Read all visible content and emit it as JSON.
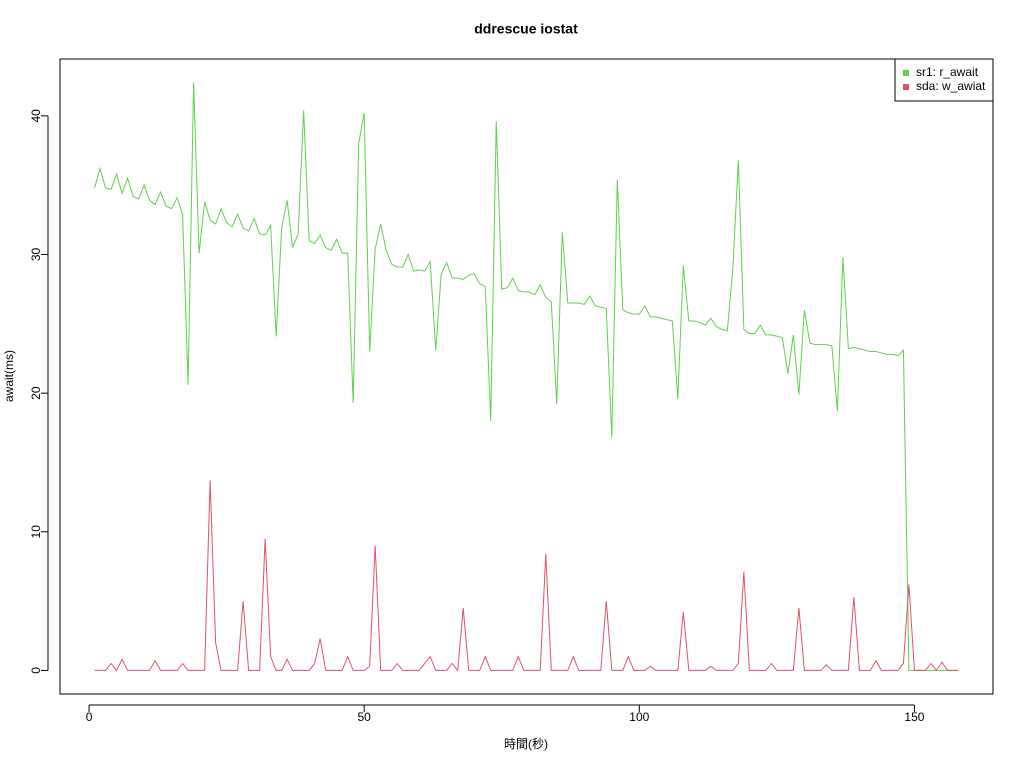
{
  "chart_data": {
    "type": "line",
    "title": "ddrescue iostat",
    "x_label": "時間(秒)",
    "y_label": "await(ms)",
    "x": [
      1,
      2,
      3,
      4,
      5,
      6,
      7,
      8,
      9,
      10,
      11,
      12,
      13,
      14,
      15,
      16,
      17,
      18,
      19,
      20,
      21,
      22,
      23,
      24,
      25,
      26,
      27,
      28,
      29,
      30,
      31,
      32,
      33,
      34,
      35,
      36,
      37,
      38,
      39,
      40,
      41,
      42,
      43,
      44,
      45,
      46,
      47,
      48,
      49,
      50,
      51,
      52,
      53,
      54,
      55,
      56,
      57,
      58,
      59,
      60,
      61,
      62,
      63,
      64,
      65,
      66,
      67,
      68,
      69,
      70,
      71,
      72,
      73,
      74,
      75,
      76,
      77,
      78,
      79,
      80,
      81,
      82,
      83,
      84,
      85,
      86,
      87,
      88,
      89,
      90,
      91,
      92,
      93,
      94,
      95,
      96,
      97,
      98,
      99,
      100,
      101,
      102,
      103,
      104,
      105,
      106,
      107,
      108,
      109,
      110,
      111,
      112,
      113,
      114,
      115,
      116,
      117,
      118,
      119,
      120,
      121,
      122,
      123,
      124,
      125,
      126,
      127,
      128,
      129,
      130,
      131,
      132,
      133,
      134,
      135,
      136,
      137,
      138,
      139,
      140,
      141,
      142,
      143,
      144,
      145,
      146,
      147,
      148,
      149,
      150,
      151,
      152,
      153,
      154,
      155,
      156,
      157,
      158
    ],
    "series": [
      {
        "name": "sr1: r_await",
        "color": "#61d04f",
        "values": [
          34.8,
          36.2,
          34.8,
          34.7,
          35.8,
          34.4,
          35.5,
          34.2,
          34.0,
          35.0,
          33.9,
          33.6,
          34.5,
          33.5,
          33.3,
          34.1,
          32.9,
          20.6,
          42.4,
          30.1,
          33.8,
          32.5,
          32.2,
          33.3,
          32.3,
          32.0,
          32.9,
          31.9,
          31.7,
          32.6,
          31.5,
          31.4,
          32.1,
          24.1,
          31.9,
          33.9,
          30.5,
          31.5,
          40.4,
          31.0,
          30.8,
          31.4,
          30.5,
          30.3,
          31.1,
          30.1,
          30.1,
          19.3,
          38.0,
          40.2,
          23.0,
          30.4,
          32.2,
          30.3,
          29.3,
          29.1,
          29.1,
          30.0,
          28.8,
          28.9,
          28.8,
          29.5,
          23.1,
          28.6,
          29.4,
          28.3,
          28.3,
          28.2,
          28.5,
          28.6,
          27.9,
          27.7,
          18.0,
          39.6,
          27.5,
          27.6,
          28.3,
          27.4,
          27.3,
          27.3,
          27.1,
          27.8,
          26.9,
          26.6,
          19.2,
          31.6,
          26.5,
          26.5,
          26.5,
          26.4,
          27.0,
          26.3,
          26.2,
          26.1,
          16.8,
          35.4,
          26.0,
          25.8,
          25.7,
          25.7,
          26.3,
          25.5,
          25.5,
          25.4,
          25.3,
          25.2,
          19.6,
          29.2,
          25.2,
          25.2,
          25.1,
          24.9,
          25.4,
          24.8,
          24.6,
          24.5,
          29.0,
          36.8,
          24.6,
          24.3,
          24.3,
          24.9,
          24.2,
          24.2,
          24.1,
          24.0,
          21.4,
          24.2,
          19.9,
          26.0,
          23.6,
          23.5,
          23.5,
          23.5,
          23.4,
          18.7,
          29.8,
          23.2,
          23.3,
          23.2,
          23.1,
          23.0,
          23.0,
          22.9,
          22.8,
          22.8,
          22.7,
          23.1,
          0,
          0,
          0,
          0,
          0,
          0,
          0,
          0,
          0,
          0
        ]
      },
      {
        "name": "sda: w_awiat",
        "color": "#df536b",
        "values": [
          0,
          0,
          0,
          0.5,
          0,
          0.8,
          0,
          0,
          0,
          0,
          0,
          0.7,
          0,
          0,
          0,
          0,
          0.5,
          0,
          0,
          0,
          0,
          13.7,
          2.0,
          0,
          0,
          0,
          0,
          5.0,
          0,
          0,
          0,
          9.5,
          1.0,
          0,
          0,
          0.8,
          0,
          0,
          0,
          0,
          0.5,
          2.3,
          0,
          0,
          0,
          0,
          1.0,
          0,
          0,
          0,
          0.3,
          9.0,
          0,
          0,
          0,
          0.5,
          0,
          0,
          0,
          0,
          0.5,
          1.0,
          0,
          0,
          0,
          0.5,
          0,
          4.5,
          0,
          0,
          0,
          1.0,
          0,
          0,
          0,
          0,
          0,
          1.0,
          0,
          0,
          0,
          0,
          8.4,
          0,
          0,
          0,
          0,
          1.0,
          0,
          0,
          0,
          0,
          0,
          5.0,
          0,
          0,
          0,
          1.0,
          0,
          0,
          0,
          0.3,
          0,
          0,
          0,
          0,
          0,
          4.2,
          0,
          0,
          0,
          0,
          0.3,
          0,
          0,
          0,
          0,
          0.5,
          7.1,
          0,
          0,
          0,
          0,
          0.5,
          0,
          0,
          0,
          0,
          4.5,
          0,
          0,
          0,
          0,
          0.4,
          0,
          0,
          0,
          0,
          5.3,
          0,
          0,
          0,
          0.7,
          0,
          0,
          0,
          0,
          0.5,
          6.2,
          0,
          0,
          0,
          0.5,
          0,
          0.6,
          0,
          0,
          0
        ]
      }
    ],
    "xlim": [
      -5.28,
      164.28
    ],
    "ylim": [
      -1.7,
      44.1
    ],
    "xticks": [
      0,
      50,
      100,
      150
    ],
    "yticks": [
      0,
      10,
      20,
      30,
      40
    ],
    "legend": "top-right"
  }
}
